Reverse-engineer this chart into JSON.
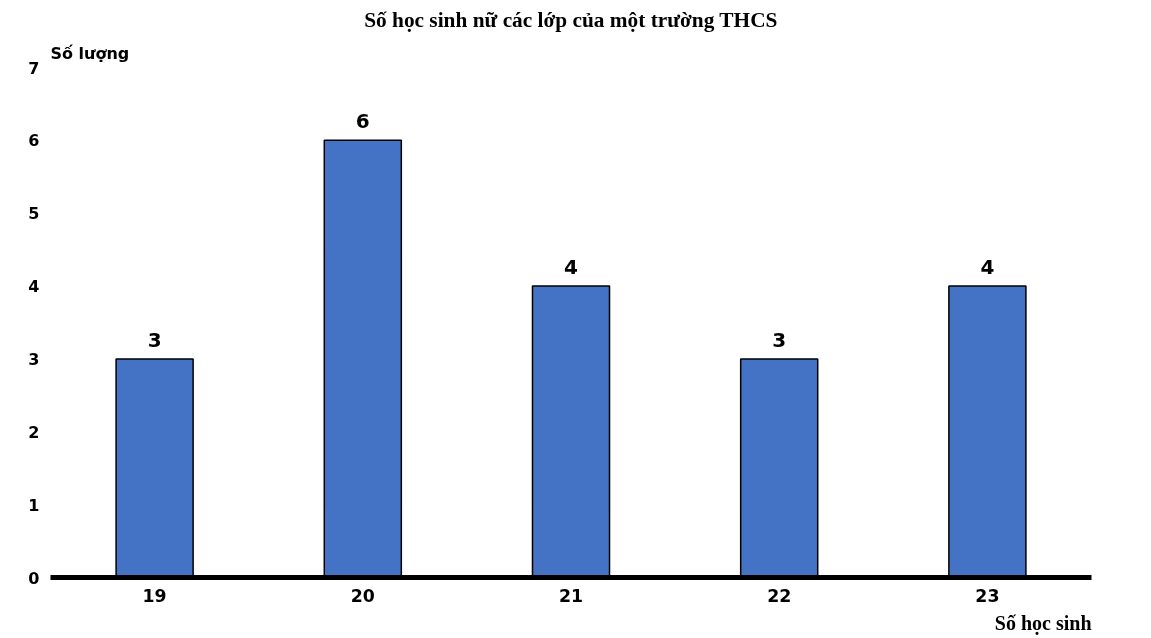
{
  "chart_data": {
    "type": "bar",
    "title": "Số học sinh nữ các lớp của một trường THCS",
    "xlabel": "Số học sinh",
    "ylabel": "Số lượng",
    "categories": [
      "19",
      "20",
      "21",
      "22",
      "23"
    ],
    "values": [
      3,
      6,
      4,
      3,
      4
    ],
    "color": "#4472c4",
    "ylim": [
      0,
      7
    ],
    "yticks": [
      0,
      1,
      2,
      3,
      4,
      5,
      6,
      7
    ],
    "grid": false,
    "data_labels": true
  }
}
